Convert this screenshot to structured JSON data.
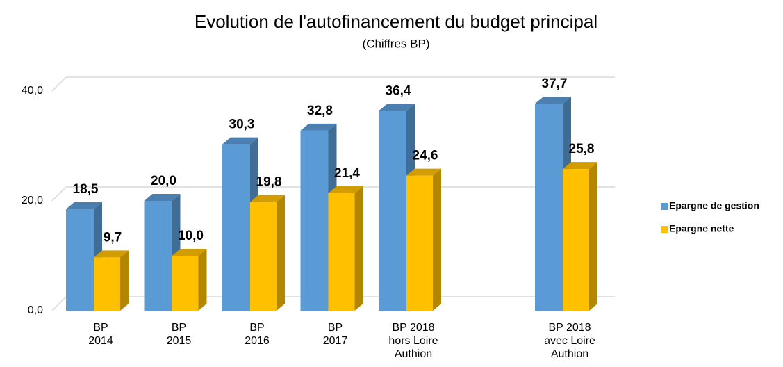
{
  "chart_data": {
    "type": "bar3d",
    "title": "Evolution de l'autofinancement du budget principal",
    "subtitle": "(Chiffres BP)",
    "categories": [
      "BP\n2014",
      "BP\n2015",
      "BP\n2016",
      "BP\n2017",
      "BP 2018\nhors Loire\nAuthion",
      null,
      "BP 2018\navec Loire\nAuthion"
    ],
    "series": [
      {
        "name": "Epargne de gestion",
        "color": "#5b9bd5",
        "values": [
          18.5,
          20.0,
          30.3,
          32.8,
          36.4,
          null,
          37.7
        ],
        "value_labels": [
          "18,5",
          "20,0",
          "30,3",
          "32,8",
          "36,4",
          null,
          "37,7"
        ]
      },
      {
        "name": "Epargne nette",
        "color": "#ffc000",
        "values": [
          9.7,
          10.0,
          19.8,
          21.4,
          24.6,
          null,
          25.8
        ],
        "value_labels": [
          "9,7",
          "10,0",
          "19,8",
          "21,4",
          "24,6",
          null,
          "25,8"
        ]
      }
    ],
    "ylim": [
      0,
      43
    ],
    "yticks": [
      {
        "value": 0,
        "label": "0,0"
      },
      {
        "value": 20,
        "label": "20,0"
      },
      {
        "value": 40,
        "label": "40,0"
      }
    ],
    "grid": true,
    "legend": "right"
  }
}
